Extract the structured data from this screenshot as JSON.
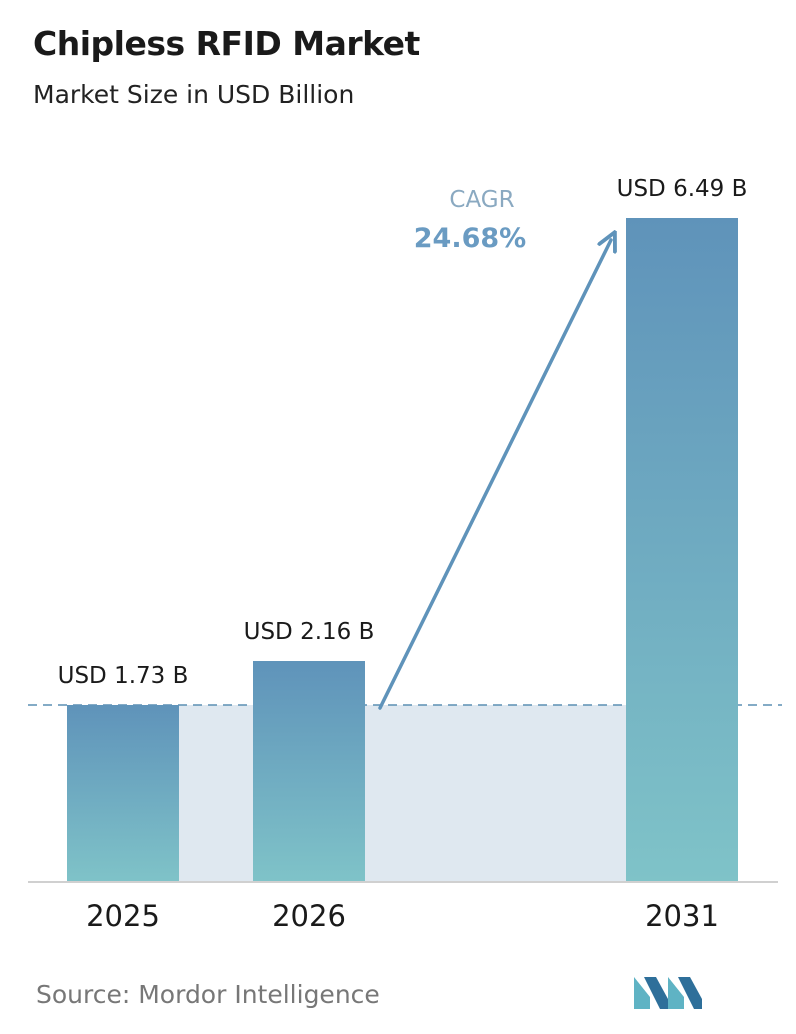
{
  "header": {
    "title": "Chipless RFID Market",
    "subtitle": "Market Size in USD Billion"
  },
  "chart_data": {
    "type": "bar",
    "title": "Chipless RFID Market",
    "subtitle": "Market Size in USD Billion",
    "categories": [
      "2025",
      "2026",
      "2031"
    ],
    "values": [
      1.73,
      2.16,
      6.49
    ],
    "data_labels": [
      "USD 1.73 B",
      "USD 2.16 B",
      "USD 6.49 B"
    ],
    "ylim": [
      0,
      6.49
    ],
    "xlabel": "",
    "ylabel": "",
    "grid": false,
    "annotation": {
      "label": "CAGR",
      "value": "24.68%"
    },
    "colors": {
      "bar_top": "#5f93ba",
      "bar_bottom": "#7fc3c8",
      "baseline_band": "#dfe8f0",
      "dashed_line": "#5b8fb3",
      "arrow": "#5f93ba",
      "cagr_label": "#8aa9c1",
      "cagr_value": "#6a9bc2"
    }
  },
  "footer": {
    "source": "Source:  Mordor Intelligence",
    "logo_icon": "mordor-intelligence-logo-icon"
  }
}
